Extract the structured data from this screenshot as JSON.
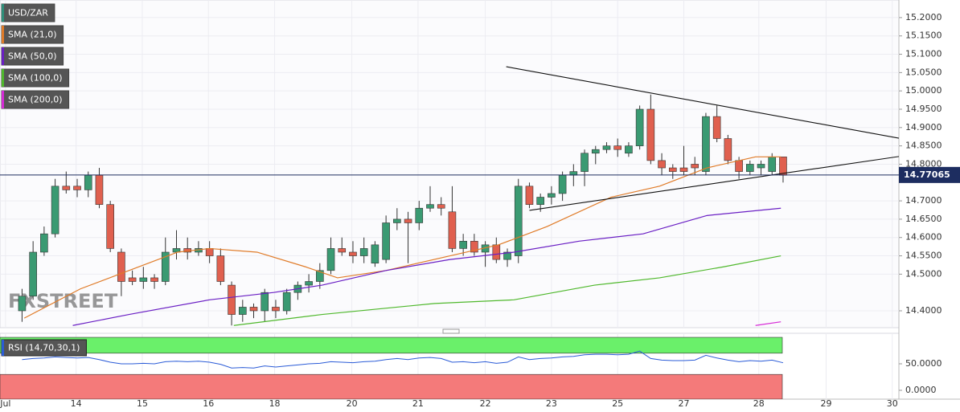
{
  "chart_data": [
    {
      "type": "candlestick",
      "watermark": "FXSTREET",
      "xlim": [
        -2,
        79.5
      ],
      "xticks": [
        {
          "value": -1.5,
          "label": "Jul"
        },
        {
          "value": 4.9,
          "label": "14"
        },
        {
          "value": 10.9,
          "label": "15"
        },
        {
          "value": 16.9,
          "label": "16"
        },
        {
          "value": 22.9,
          "label": "18"
        },
        {
          "value": 29.9,
          "label": "20"
        },
        {
          "value": 35.9,
          "label": "21"
        },
        {
          "value": 42,
          "label": "22"
        },
        {
          "value": 48,
          "label": "23"
        },
        {
          "value": 54,
          "label": "25"
        },
        {
          "value": 60,
          "label": "27"
        },
        {
          "value": 66.8,
          "label": "28"
        },
        {
          "value": 72.9,
          "label": "29"
        },
        {
          "value": 78.9,
          "label": "30"
        }
      ],
      "ylim": [
        14.354,
        15.248
      ],
      "yticks": [
        {
          "value": 15.2,
          "label": "15.2000"
        },
        {
          "value": 15.15,
          "label": "15.1500"
        },
        {
          "value": 15.1,
          "label": "15.1000"
        },
        {
          "value": 15.05,
          "label": "15.0500"
        },
        {
          "value": 15.0,
          "label": "15.0000"
        },
        {
          "value": 14.95,
          "label": "14.9500"
        },
        {
          "value": 14.9,
          "label": "14.9000"
        },
        {
          "value": 14.85,
          "label": "14.8500"
        },
        {
          "value": 14.8,
          "label": "14.8000"
        },
        {
          "value": 14.7,
          "label": "14.7000"
        },
        {
          "value": 14.65,
          "label": "14.6500"
        },
        {
          "value": 14.6,
          "label": "14.6000"
        },
        {
          "value": 14.55,
          "label": "14.5500"
        },
        {
          "value": 14.5,
          "label": "14.5000"
        },
        {
          "value": 14.4,
          "label": "14.4000"
        }
      ],
      "grid": true,
      "last_price": 14.77065,
      "series": [
        {
          "name": "USD/ZAR",
          "color": "#2f8f7a",
          "up_color": "#3a9a72",
          "down_color": "#e0604f",
          "open": [
            14.4,
            14.44,
            14.56,
            14.61,
            14.74,
            14.74,
            14.73,
            14.77,
            14.69,
            14.56,
            14.49,
            14.48,
            14.49,
            14.48,
            14.56,
            14.57,
            14.56,
            14.57,
            14.55,
            14.47,
            14.39,
            14.41,
            14.4,
            14.41,
            14.4,
            14.45,
            14.47,
            14.48,
            14.51,
            14.57,
            14.56,
            14.55,
            14.53,
            14.54,
            14.64,
            14.65,
            14.64,
            14.68,
            14.69,
            14.67,
            14.57,
            14.59,
            14.56,
            14.58,
            14.54,
            14.55,
            14.74,
            14.69,
            14.71,
            14.72,
            14.77,
            14.78,
            14.83,
            14.84,
            14.85,
            14.83,
            14.85,
            14.95,
            14.81,
            14.79,
            14.79,
            14.8,
            14.78,
            14.93,
            14.87,
            14.81,
            14.78,
            14.79,
            14.78,
            14.82
          ],
          "high": [
            14.46,
            14.59,
            14.63,
            14.76,
            14.78,
            14.76,
            14.78,
            14.79,
            14.7,
            14.57,
            14.51,
            14.52,
            14.5,
            14.6,
            14.62,
            14.6,
            14.59,
            14.59,
            14.57,
            14.48,
            14.43,
            14.42,
            14.46,
            14.43,
            14.46,
            14.48,
            14.5,
            14.53,
            14.6,
            14.6,
            14.59,
            14.6,
            14.59,
            14.66,
            14.68,
            14.67,
            14.7,
            14.74,
            14.71,
            14.74,
            14.61,
            14.61,
            14.59,
            14.6,
            14.57,
            14.76,
            14.75,
            14.72,
            14.74,
            14.78,
            14.8,
            14.84,
            14.85,
            14.86,
            14.87,
            14.86,
            14.96,
            14.99,
            14.83,
            14.8,
            14.85,
            14.82,
            14.94,
            14.96,
            14.88,
            14.82,
            14.81,
            14.81,
            14.83,
            14.82
          ],
          "low": [
            14.37,
            14.43,
            14.55,
            14.6,
            14.72,
            14.71,
            14.71,
            14.68,
            14.56,
            14.44,
            14.47,
            14.46,
            14.46,
            14.47,
            14.54,
            14.54,
            14.55,
            14.53,
            14.47,
            14.36,
            14.37,
            14.38,
            14.37,
            14.38,
            14.39,
            14.43,
            14.45,
            14.46,
            14.5,
            14.55,
            14.53,
            14.53,
            14.52,
            14.53,
            14.62,
            14.53,
            14.62,
            14.67,
            14.66,
            14.56,
            14.55,
            14.55,
            14.52,
            14.53,
            14.52,
            14.53,
            14.68,
            14.67,
            14.69,
            14.7,
            14.74,
            14.74,
            14.8,
            14.83,
            14.82,
            14.82,
            14.84,
            14.8,
            14.77,
            14.76,
            14.77,
            14.77,
            14.77,
            14.86,
            14.8,
            14.76,
            14.77,
            14.77,
            14.77,
            14.75
          ],
          "close": [
            14.44,
            14.56,
            14.61,
            14.74,
            14.73,
            14.73,
            14.77,
            14.69,
            14.57,
            14.48,
            14.48,
            14.49,
            14.48,
            14.56,
            14.57,
            14.56,
            14.57,
            14.55,
            14.48,
            14.39,
            14.41,
            14.4,
            14.45,
            14.4,
            14.45,
            14.47,
            14.48,
            14.51,
            14.57,
            14.56,
            14.55,
            14.57,
            14.58,
            14.64,
            14.65,
            14.64,
            14.68,
            14.69,
            14.68,
            14.57,
            14.59,
            14.56,
            14.58,
            14.54,
            14.56,
            14.74,
            14.69,
            14.71,
            14.72,
            14.77,
            14.78,
            14.83,
            14.84,
            14.85,
            14.84,
            14.85,
            14.95,
            14.81,
            14.79,
            14.78,
            14.78,
            14.79,
            14.93,
            14.87,
            14.81,
            14.78,
            14.8,
            14.8,
            14.82,
            14.77
          ]
        },
        {
          "name": "SMA (21,0)",
          "color": "#e07b28",
          "x": [
            0.2,
            5.3,
            9.7,
            14.1,
            17.0,
            21.3,
            25.7,
            28.6,
            33.0,
            38.8,
            43.2,
            47.6,
            53.4,
            57.8,
            62.1,
            66.5,
            68.8
          ],
          "values": [
            14.38,
            14.46,
            14.51,
            14.56,
            14.57,
            14.56,
            14.52,
            14.49,
            14.51,
            14.55,
            14.58,
            14.63,
            14.71,
            14.74,
            14.79,
            14.82,
            14.82
          ]
        },
        {
          "name": "SMA (50,0)",
          "color": "#6a1fc4",
          "x": [
            4.6,
            9.7,
            17.0,
            22.8,
            27.2,
            33.0,
            38.8,
            44.6,
            50.5,
            56.3,
            62.1,
            68.8
          ],
          "values": [
            14.36,
            14.39,
            14.43,
            14.45,
            14.47,
            14.51,
            14.54,
            14.56,
            14.59,
            14.61,
            14.66,
            14.68
          ]
        },
        {
          "name": "SMA (100,0)",
          "color": "#4fb82c",
          "x": [
            19.2,
            27.2,
            37.4,
            44.6,
            51.9,
            57.8,
            63.6,
            68.8
          ],
          "values": [
            14.36,
            14.39,
            14.42,
            14.43,
            14.47,
            14.49,
            14.52,
            14.55
          ]
        },
        {
          "name": "SMA (200,0)",
          "color": "#d62ad6",
          "x": [
            66.5,
            68.8
          ],
          "values": [
            14.36,
            14.37
          ]
        }
      ],
      "trendlines": [
        {
          "x": [
            43.9,
            79.5
          ],
          "y": [
            15.066,
            14.871
          ]
        },
        {
          "x": [
            46.0,
            79.5
          ],
          "y": [
            14.674,
            14.821
          ]
        }
      ]
    },
    {
      "type": "line",
      "ylim": [
        -16.7,
        107.6
      ],
      "yticks": [
        {
          "value": 50,
          "label": "50.0000"
        },
        {
          "value": 0,
          "label": "0.0000"
        }
      ],
      "overbought": 70,
      "oversold": 30,
      "band_top": 100,
      "band_colors": [
        "#6af06a",
        "#f47a7a"
      ],
      "series": [
        {
          "name": "RSI (14,70,30,1)",
          "color": "#2a5bd7",
          "values": [
            58,
            60,
            61,
            63,
            62,
            61,
            62,
            58,
            53,
            50,
            50,
            51,
            50,
            54,
            55,
            54,
            55,
            53,
            49,
            42,
            43,
            42,
            46,
            44,
            46,
            48,
            50,
            51,
            54,
            53,
            52,
            54,
            55,
            58,
            60,
            58,
            61,
            62,
            60,
            53,
            54,
            52,
            54,
            51,
            53,
            63,
            58,
            60,
            61,
            63,
            64,
            67,
            68,
            68,
            67,
            68,
            74,
            60,
            57,
            56,
            56,
            57,
            66,
            61,
            57,
            54,
            56,
            55,
            57,
            52
          ]
        }
      ]
    }
  ]
}
